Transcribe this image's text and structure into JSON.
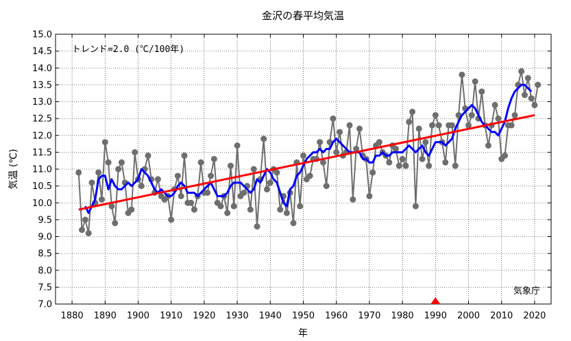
{
  "chart_data": {
    "type": "line",
    "title": "金沢の春平均気温",
    "xlabel": "年",
    "ylabel": "気温 (℃)",
    "annotation": "トレンド=2.0 (℃/100年)",
    "source": "気象庁",
    "xlim": [
      1875,
      2025
    ],
    "ylim": [
      7.0,
      15.0
    ],
    "x_ticks": [
      1880,
      1890,
      1900,
      1910,
      1920,
      1930,
      1940,
      1950,
      1960,
      1970,
      1980,
      1990,
      2000,
      2010,
      2020
    ],
    "y_ticks": [
      7.0,
      7.5,
      8.0,
      8.5,
      9.0,
      9.5,
      10.0,
      10.5,
      11.0,
      11.5,
      12.0,
      12.5,
      13.0,
      13.5,
      14.0,
      14.5,
      15.0
    ],
    "grid": true,
    "marker_year": 1990,
    "colors": {
      "annual": "#6e6e6e",
      "moving_average": "#0000ff",
      "trend": "#ff0000",
      "marker": "#ff0000"
    },
    "series": [
      {
        "x": [
          1882,
          1883,
          1884,
          1885,
          1886,
          1887,
          1888,
          1889,
          1890,
          1891,
          1892,
          1893,
          1894,
          1895,
          1896,
          1897,
          1898,
          1899,
          1900,
          1901,
          1902,
          1903,
          1904,
          1905,
          1906,
          1907,
          1908,
          1909,
          1910,
          1911,
          1912,
          1913,
          1914,
          1915,
          1916,
          1917,
          1918,
          1919,
          1920,
          1921,
          1922,
          1923,
          1924,
          1925,
          1926,
          1927,
          1928,
          1929,
          1930,
          1931,
          1932,
          1933,
          1934,
          1935,
          1936,
          1937,
          1938,
          1939,
          1940,
          1941,
          1942,
          1943,
          1944,
          1945,
          1946,
          1947,
          1948,
          1949,
          1950,
          1951,
          1952,
          1953,
          1954,
          1955,
          1956,
          1957,
          1958,
          1959,
          1960,
          1961,
          1962,
          1963,
          1964,
          1965,
          1966,
          1967,
          1968,
          1969,
          1970,
          1971,
          1972,
          1973,
          1974,
          1975,
          1976,
          1977,
          1978,
          1979,
          1980,
          1981,
          1982,
          1983,
          1984,
          1985,
          1986,
          1987,
          1988,
          1989,
          1990,
          1991,
          1992,
          1993,
          1994,
          1995,
          1996,
          1997,
          1998,
          1999,
          2000,
          2001,
          2002,
          2003,
          2004,
          2005,
          2006,
          2007,
          2008,
          2009,
          2010,
          2011,
          2012,
          2013,
          2014,
          2015,
          2016,
          2017,
          2018,
          2019,
          2020,
          2021
        ],
        "values": [
          10.9,
          9.2,
          9.5,
          9.1,
          10.6,
          10.0,
          10.9,
          10.1,
          11.8,
          11.2,
          9.9,
          9.4,
          11.0,
          11.2,
          10.6,
          9.7,
          9.8,
          11.5,
          10.7,
          10.5,
          11.0,
          11.4,
          10.7,
          10.3,
          10.7,
          10.2,
          10.1,
          10.2,
          9.5,
          10.4,
          10.8,
          10.2,
          11.4,
          10.0,
          10.0,
          9.8,
          10.2,
          11.2,
          10.3,
          10.3,
          10.8,
          11.3,
          10.0,
          9.9,
          10.2,
          9.7,
          11.1,
          9.9,
          11.7,
          10.2,
          10.3,
          10.5,
          9.8,
          11.0,
          9.3,
          10.7,
          11.9,
          10.4,
          10.6,
          11.0,
          10.9,
          9.8,
          10.2,
          9.7,
          10.3,
          9.4,
          11.2,
          9.9,
          11.4,
          10.7,
          10.8,
          11.3,
          11.3,
          11.8,
          11.2,
          10.5,
          11.8,
          12.5,
          11.5,
          12.1,
          11.4,
          11.5,
          12.3,
          10.1,
          11.6,
          12.2,
          11.4,
          11.3,
          10.2,
          10.9,
          11.7,
          11.8,
          11.5,
          11.4,
          11.2,
          11.7,
          11.6,
          11.1,
          11.3,
          11.1,
          12.4,
          12.7,
          9.9,
          12.2,
          11.3,
          11.8,
          11.1,
          12.3,
          12.6,
          12.3,
          11.8,
          11.2,
          12.3,
          12.3,
          11.1,
          12.6,
          13.8,
          12.8,
          12.3,
          12.6,
          13.6,
          12.5,
          13.3,
          12.3,
          11.7,
          12.3,
          12.9,
          12.5,
          11.3,
          11.4,
          12.3,
          12.3,
          12.6,
          13.5,
          13.9,
          13.2,
          13.7,
          13.1,
          12.9,
          13.5
        ]
      },
      {
        "x": [
          1884,
          1885,
          1886,
          1887,
          1888,
          1889,
          1890,
          1891,
          1892,
          1893,
          1894,
          1895,
          1896,
          1897,
          1898,
          1899,
          1900,
          1901,
          1902,
          1903,
          1904,
          1905,
          1906,
          1907,
          1908,
          1909,
          1910,
          1911,
          1912,
          1913,
          1914,
          1915,
          1916,
          1917,
          1918,
          1919,
          1920,
          1921,
          1922,
          1923,
          1924,
          1925,
          1926,
          1927,
          1928,
          1929,
          1930,
          1931,
          1932,
          1933,
          1934,
          1935,
          1936,
          1937,
          1938,
          1939,
          1940,
          1941,
          1942,
          1943,
          1944,
          1945,
          1946,
          1947,
          1948,
          1949,
          1950,
          1951,
          1952,
          1953,
          1954,
          1955,
          1956,
          1957,
          1958,
          1959,
          1960,
          1961,
          1962,
          1963,
          1964,
          1965,
          1966,
          1967,
          1968,
          1969,
          1970,
          1971,
          1972,
          1973,
          1974,
          1975,
          1976,
          1977,
          1978,
          1979,
          1980,
          1981,
          1982,
          1983,
          1984,
          1985,
          1986,
          1987,
          1988,
          1989,
          1990,
          1991,
          1992,
          1993,
          1994,
          1995,
          1996,
          1997,
          1998,
          1999,
          2000,
          2001,
          2002,
          2003,
          2004,
          2005,
          2006,
          2007,
          2008,
          2009,
          2010,
          2011,
          2012,
          2013,
          2014,
          2015,
          2016,
          2017,
          2018,
          2019
        ],
        "values": [
          9.9,
          9.7,
          9.9,
          10.1,
          10.7,
          10.8,
          10.8,
          10.4,
          10.7,
          10.5,
          10.4,
          10.4,
          10.5,
          10.6,
          10.5,
          10.6,
          10.7,
          11.0,
          10.9,
          10.8,
          10.6,
          10.4,
          10.3,
          10.4,
          10.3,
          10.2,
          10.2,
          10.3,
          10.5,
          10.6,
          10.5,
          10.3,
          10.3,
          10.3,
          10.2,
          10.3,
          10.4,
          10.5,
          10.6,
          10.4,
          10.2,
          10.2,
          10.2,
          10.3,
          10.5,
          10.6,
          10.6,
          10.6,
          10.5,
          10.4,
          10.3,
          10.4,
          10.7,
          10.6,
          10.8,
          11.0,
          10.9,
          10.7,
          10.6,
          10.3,
          10.0,
          9.9,
          10.4,
          10.5,
          10.8,
          10.9,
          11.1,
          11.3,
          11.4,
          11.5,
          11.5,
          11.6,
          11.5,
          11.6,
          11.6,
          11.8,
          11.9,
          11.8,
          11.7,
          11.6,
          11.5,
          11.5,
          11.5,
          11.5,
          11.3,
          11.3,
          11.2,
          11.2,
          11.4,
          11.4,
          11.5,
          11.4,
          11.4,
          11.5,
          11.5,
          11.5,
          11.5,
          11.6,
          11.7,
          11.6,
          11.5,
          11.6,
          11.7,
          11.5,
          11.4,
          11.6,
          11.8,
          11.8,
          11.8,
          11.7,
          11.8,
          11.9,
          12.2,
          12.4,
          12.6,
          12.7,
          12.8,
          12.9,
          12.8,
          12.6,
          12.4,
          12.3,
          12.2,
          12.1,
          12.1,
          12.0,
          12.2,
          12.4,
          12.8,
          13.1,
          13.3,
          13.4,
          13.5,
          13.5,
          13.4,
          13.3
        ]
      },
      {
        "x": [
          1882,
          2020
        ],
        "values": [
          9.8,
          12.6
        ]
      }
    ]
  }
}
